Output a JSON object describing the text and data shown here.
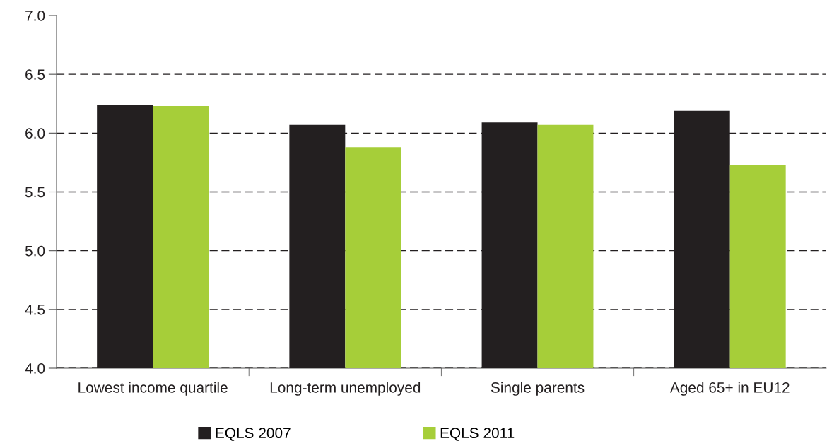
{
  "chart_data": {
    "type": "bar",
    "categories": [
      "Lowest income quartile",
      "Long-term unemployed",
      "Single parents",
      "Aged 65+ in EU12"
    ],
    "series": [
      {
        "name": "EQLS 2007",
        "color": "#231f20",
        "values": [
          6.24,
          6.07,
          6.09,
          6.19
        ]
      },
      {
        "name": "EQLS 2011",
        "color": "#a6ce39",
        "values": [
          6.23,
          5.88,
          6.07,
          5.73
        ]
      }
    ],
    "ylim": [
      4.0,
      7.0
    ],
    "yticks": [
      {
        "value": 4.0,
        "label": "4.0"
      },
      {
        "value": 4.5,
        "label": "4.5"
      },
      {
        "value": 5.0,
        "label": "5.0"
      },
      {
        "value": 5.5,
        "label": "5.5"
      },
      {
        "value": 6.0,
        "label": "6.0"
      },
      {
        "value": 6.5,
        "label": "6.5"
      },
      {
        "value": 7.0,
        "label": "7.0"
      }
    ],
    "grid": "y",
    "line_style": "dashed",
    "legend": "bottom"
  }
}
